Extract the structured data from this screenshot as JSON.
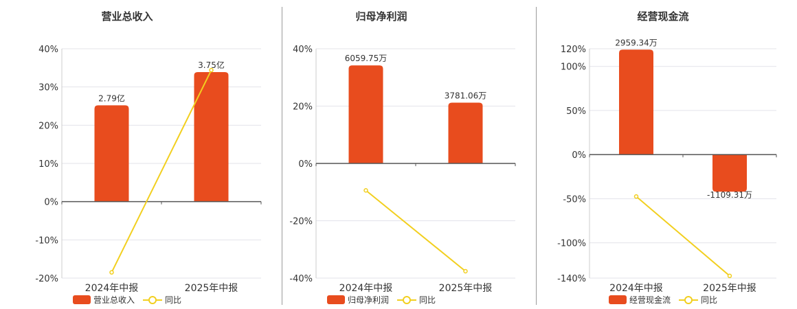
{
  "colors": {
    "bar": "#e84c1e",
    "line": "#f2cf1f",
    "grid": "#e3e3ea",
    "axis": "#555555"
  },
  "chart_data": [
    {
      "type": "bar",
      "title": "营业总收入",
      "categories": [
        "2024年中报",
        "2025年中报"
      ],
      "series": [
        {
          "name": "营业总收入",
          "type": "bar",
          "values": [
            25.2,
            33.9
          ],
          "labels": [
            "2.79亿",
            "3.75亿"
          ]
        },
        {
          "name": "同比",
          "type": "line",
          "values": [
            -18.5,
            34.4
          ]
        }
      ],
      "yticks": [
        40,
        30,
        20,
        10,
        0,
        -10,
        -20
      ],
      "ylim": [
        -20,
        40
      ],
      "ytick_format": "%"
    },
    {
      "type": "bar",
      "title": "归母净利润",
      "categories": [
        "2024年中报",
        "2025年中报"
      ],
      "series": [
        {
          "name": "归母净利润",
          "type": "bar",
          "values": [
            34.2,
            21.2
          ],
          "labels": [
            "6059.75万",
            "3781.06万"
          ]
        },
        {
          "name": "同比",
          "type": "line",
          "values": [
            -9.4,
            -37.6
          ]
        }
      ],
      "yticks": [
        40,
        20,
        0,
        -20,
        -40
      ],
      "ylim": [
        -40,
        40
      ],
      "ytick_format": "%"
    },
    {
      "type": "bar",
      "title": "经营现金流",
      "categories": [
        "2024年中报",
        "2025年中报"
      ],
      "series": [
        {
          "name": "经营现金流",
          "type": "bar",
          "values": [
            119,
            -42
          ],
          "labels": [
            "2959.34万",
            "-1109.31万"
          ]
        },
        {
          "name": "同比",
          "type": "line",
          "values": [
            -47.5,
            -137.5
          ]
        }
      ],
      "yticks": [
        120,
        100,
        50,
        0,
        -50,
        -100,
        -140
      ],
      "ylim": [
        -140,
        120
      ],
      "ytick_format": "%"
    }
  ]
}
